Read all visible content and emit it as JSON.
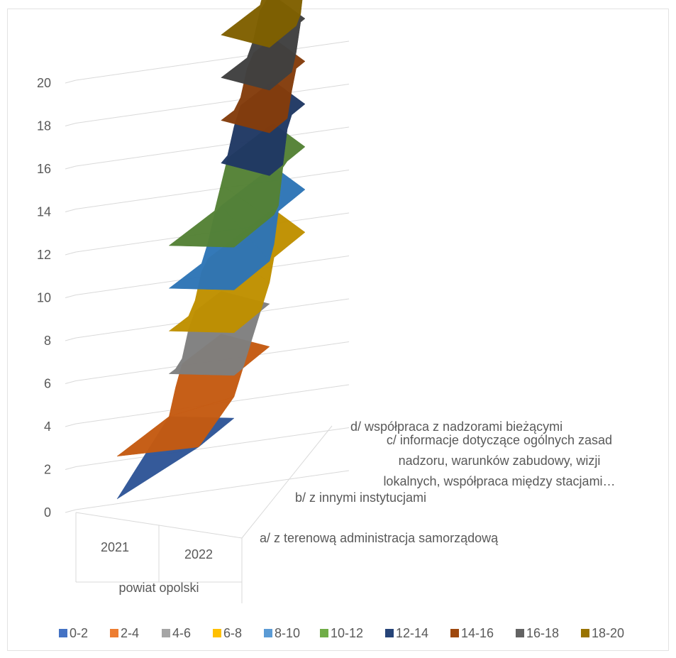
{
  "chart_data": {
    "type": "surface",
    "categories": [
      "2021",
      "2022"
    ],
    "category_group": "powiat opolski",
    "series": [
      {
        "name": "a/  z terenową administracja samorządową",
        "values": [
          0,
          2
        ]
      },
      {
        "name": "b/  z innymi instytucjami",
        "values": [
          2,
          3
        ]
      },
      {
        "name": "c/  informacje dotyczące ogólnych zasad nadzoru, warunków zabudowy, wizji lokalnych, współpraca między stacjami…",
        "values": [
          11,
          7
        ]
      },
      {
        "name": "d/  współpraca z nadzorami bieżącymi",
        "values": [
          20,
          20
        ]
      }
    ],
    "ylim": [
      0,
      20
    ],
    "yticks": [
      "0",
      "2",
      "4",
      "6",
      "8",
      "10",
      "12",
      "14",
      "16",
      "18",
      "20"
    ],
    "legend": [
      {
        "label": "0-2",
        "color": "#4472c4"
      },
      {
        "label": "2-4",
        "color": "#ed7d31"
      },
      {
        "label": "4-6",
        "color": "#a5a5a5"
      },
      {
        "label": "6-8",
        "color": "#ffc000"
      },
      {
        "label": "8-10",
        "color": "#5b9bd5"
      },
      {
        "label": "10-12",
        "color": "#70ad47"
      },
      {
        "label": "12-14",
        "color": "#264478"
      },
      {
        "label": "14-16",
        "color": "#9e480e"
      },
      {
        "label": "16-18",
        "color": "#636363"
      },
      {
        "label": "18-20",
        "color": "#997300"
      }
    ],
    "legend_position": "bottom"
  }
}
